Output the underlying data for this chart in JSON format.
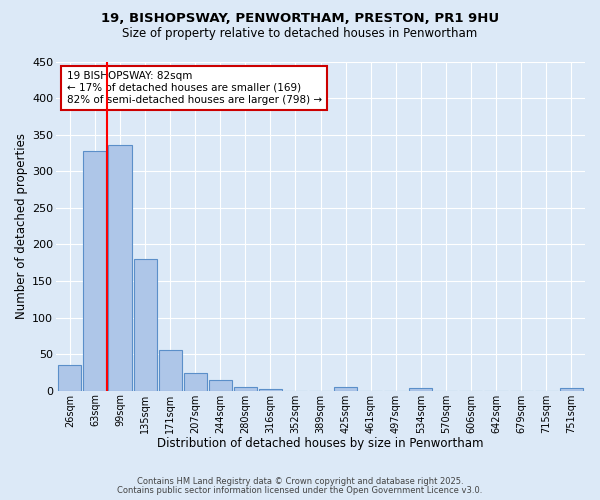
{
  "title_line1": "19, BISHOPSWAY, PENWORTHAM, PRESTON, PR1 9HU",
  "title_line2": "Size of property relative to detached houses in Penwortham",
  "xlabel": "Distribution of detached houses by size in Penwortham",
  "ylabel": "Number of detached properties",
  "categories": [
    "26sqm",
    "63sqm",
    "99sqm",
    "135sqm",
    "171sqm",
    "207sqm",
    "244sqm",
    "280sqm",
    "316sqm",
    "352sqm",
    "389sqm",
    "425sqm",
    "461sqm",
    "497sqm",
    "534sqm",
    "570sqm",
    "606sqm",
    "642sqm",
    "679sqm",
    "715sqm",
    "751sqm"
  ],
  "values": [
    35,
    328,
    336,
    180,
    55,
    24,
    15,
    5,
    2,
    0,
    0,
    5,
    0,
    0,
    3,
    0,
    0,
    0,
    0,
    0,
    3
  ],
  "bar_color": "#aec6e8",
  "bar_edge_color": "#5b8fc9",
  "background_color": "#dce9f7",
  "grid_color": "#ffffff",
  "red_line_x": 1.5,
  "annotation_text": "19 BISHOPSWAY: 82sqm\n← 17% of detached houses are smaller (169)\n82% of semi-detached houses are larger (798) →",
  "annotation_box_color": "#ffffff",
  "annotation_box_edge": "#cc0000",
  "ylim": [
    0,
    450
  ],
  "yticks": [
    0,
    50,
    100,
    150,
    200,
    250,
    300,
    350,
    400,
    450
  ],
  "footer_line1": "Contains HM Land Registry data © Crown copyright and database right 2025.",
  "footer_line2": "Contains public sector information licensed under the Open Government Licence v3.0."
}
